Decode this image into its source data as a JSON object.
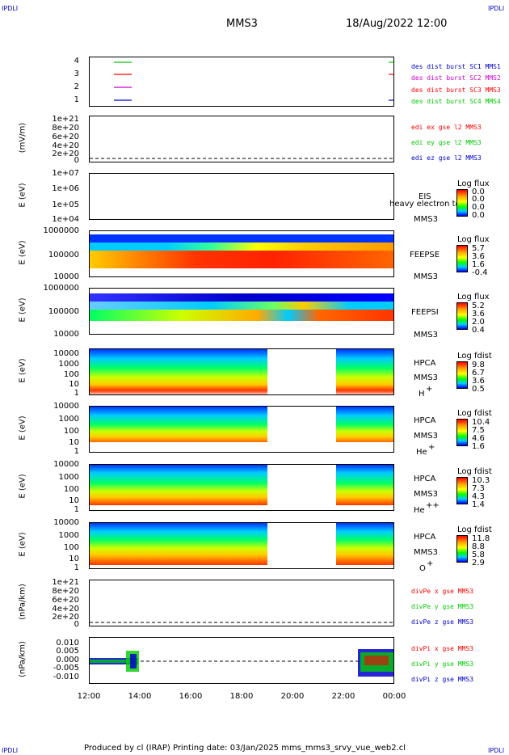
{
  "corners": {
    "top_left": "IPDLI",
    "top_right": "IPDLI",
    "bottom_left": "IPDLI",
    "bottom_right": "IPDLI"
  },
  "header": {
    "title": "MMS3",
    "datetime": "18/Aug/2022 12:00"
  },
  "footer": {
    "text": "Produced by cl (IRAP)   Printing date: 03/Jan/2025   mms_mms3_srvy_vue_web2.cl"
  },
  "colors": {
    "red": "#ff0000",
    "green": "#00cc00",
    "blue": "#0000cc",
    "magenta": "#cc00cc"
  },
  "x_axis": {
    "ticks": [
      "12:00",
      "14:00",
      "16:00",
      "18:00",
      "20:00",
      "22:00",
      "00:00"
    ]
  },
  "chart_data": [
    {
      "type": "line",
      "panel": "burst",
      "yticks": [
        "4",
        "3",
        "2",
        "1"
      ],
      "legend": [
        "des dist burst SC1 MMS1",
        "des dist burst SC2 MMS2",
        "des dist burst SC3 MMS3",
        "des dist burst SC4 MMS4"
      ],
      "legend_colors": [
        "#0000cc",
        "#cc00cc",
        "#ff0000",
        "#00cc00"
      ]
    },
    {
      "type": "line",
      "panel": "edi",
      "ylabel": "(mV/m)",
      "yticks": [
        "1e+21",
        "8e+20",
        "6e+20",
        "4e+20",
        "2e+20",
        "0"
      ],
      "legend": [
        "edi ex gse l2 MMS3",
        "edi ey gse l2 MMS3",
        "edi ez gse l2 MMS3"
      ],
      "legend_colors": [
        "#ff0000",
        "#00cc00",
        "#0000cc"
      ]
    },
    {
      "type": "heatmap",
      "panel": "eis",
      "ylabel": "E (eV)",
      "yticks": [
        "1e+07",
        "1e+06",
        "1e+05",
        "1e+04"
      ],
      "side_labels": [
        "EIS",
        "MMS3"
      ],
      "overlay_text": "heavy electron to",
      "colorbar_title": "Log flux",
      "colorbar_ticks": [
        "0.0",
        "0.0",
        "0.0",
        "0.0"
      ]
    },
    {
      "type": "heatmap",
      "panel": "feepse",
      "ylabel": "E (eV)",
      "yticks": [
        "1000000",
        "100000",
        "10000"
      ],
      "side_labels": [
        "FEEPSE",
        "MMS3"
      ],
      "colorbar_title": "Log flux",
      "colorbar_ticks": [
        "5.7",
        "3.6",
        "1.6",
        "-0.4"
      ]
    },
    {
      "type": "heatmap",
      "panel": "feepsi",
      "ylabel": "E (eV)",
      "yticks": [
        "1000000",
        "100000",
        "10000"
      ],
      "side_labels": [
        "FEEPSI",
        "MMS3"
      ],
      "colorbar_title": "Log flux",
      "colorbar_ticks": [
        "5.2",
        "3.6",
        "2.0",
        "0.4"
      ]
    },
    {
      "type": "heatmap",
      "panel": "hpca_h",
      "ylabel": "E (eV)",
      "yticks": [
        "10000",
        "1000",
        "100",
        "10",
        "1"
      ],
      "side_labels": [
        "HPCA",
        "MMS3",
        "H",
        "+"
      ],
      "colorbar_title": "Log fdist",
      "colorbar_ticks": [
        "9.8",
        "6.7",
        "3.6",
        "0.5"
      ]
    },
    {
      "type": "heatmap",
      "panel": "hpca_he",
      "ylabel": "E (eV)",
      "yticks": [
        "10000",
        "1000",
        "100",
        "10",
        "1"
      ],
      "side_labels": [
        "HPCA",
        "MMS3",
        "He",
        "+"
      ],
      "colorbar_title": "Log fdist",
      "colorbar_ticks": [
        "10.4",
        "7.5",
        "4.6",
        "1.6"
      ]
    },
    {
      "type": "heatmap",
      "panel": "hpca_hepp",
      "ylabel": "E (eV)",
      "yticks": [
        "10000",
        "1000",
        "100",
        "10",
        "1"
      ],
      "side_labels": [
        "HPCA",
        "MMS3",
        "He",
        "++"
      ],
      "colorbar_title": "Log fdist",
      "colorbar_ticks": [
        "10.3",
        "7.3",
        "4.3",
        "1.4"
      ]
    },
    {
      "type": "heatmap",
      "panel": "hpca_o",
      "ylabel": "E (eV)",
      "yticks": [
        "10000",
        "1000",
        "100",
        "10",
        "1"
      ],
      "side_labels": [
        "HPCA",
        "MMS3",
        "O",
        "+"
      ],
      "colorbar_title": "Log fdist",
      "colorbar_ticks": [
        "11.8",
        "8.8",
        "5.8",
        "2.9"
      ]
    },
    {
      "type": "line",
      "panel": "divpe",
      "ylabel": "(nPa/km)",
      "yticks": [
        "1e+21",
        "8e+20",
        "6e+20",
        "4e+20",
        "2e+20",
        "0"
      ],
      "legend": [
        "divPe x gse MMS3",
        "divPe y gse MMS3",
        "divPe z gse MMS3"
      ],
      "legend_colors": [
        "#ff0000",
        "#00cc00",
        "#0000cc"
      ]
    },
    {
      "type": "line",
      "panel": "divpi",
      "ylabel": "(nPa/km)",
      "yticks": [
        "0.010",
        "0.005",
        "0.000",
        "-0.005",
        "-0.010"
      ],
      "legend": [
        "divPi x gse MMS3",
        "divPi y gse MMS3",
        "divPi z gse MMS3"
      ],
      "legend_colors": [
        "#ff0000",
        "#00cc00",
        "#0000cc"
      ]
    }
  ]
}
